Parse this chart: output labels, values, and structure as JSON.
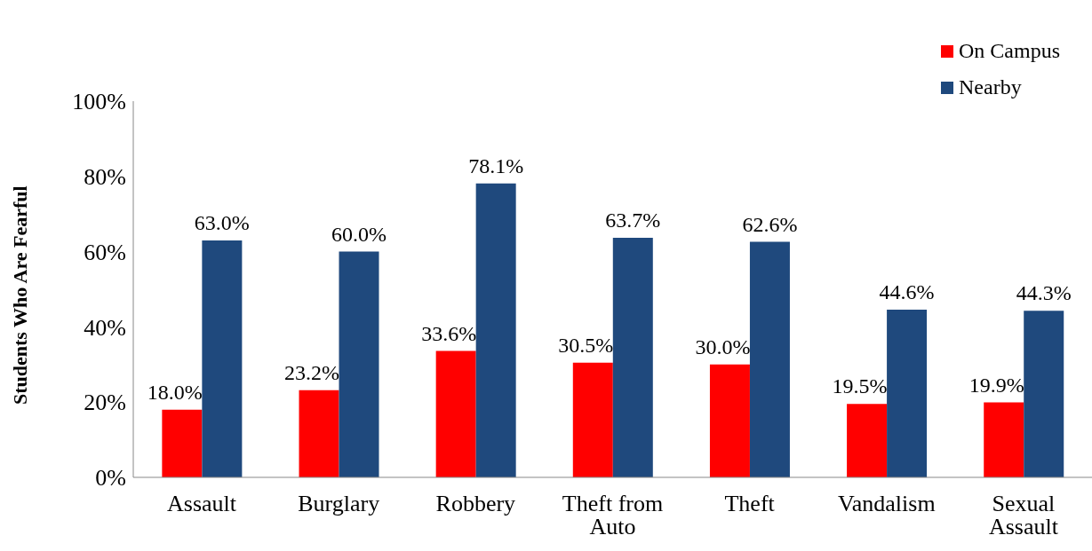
{
  "chart_data": {
    "type": "bar",
    "ylabel": "Students Who Are Fearful",
    "categories": [
      "Assault",
      "Burglary",
      "Robbery",
      "Theft from Auto",
      "Theft",
      "Vandalism",
      "Sexual Assault"
    ],
    "series": [
      {
        "name": "On Campus",
        "color": "#ff0000",
        "values": [
          18.0,
          23.2,
          33.6,
          30.5,
          30.0,
          19.5,
          19.9
        ],
        "value_labels": [
          "18.0%",
          "23.2%",
          "33.6%",
          "30.5%",
          "30.0%",
          "19.5%",
          "19.9%"
        ]
      },
      {
        "name": "Nearby",
        "color": "#1f497d",
        "values": [
          63.0,
          60.0,
          78.1,
          63.7,
          62.6,
          44.6,
          44.3
        ],
        "value_labels": [
          "63.0%",
          "60.0%",
          "78.1%",
          "63.7%",
          "62.6%",
          "44.6%",
          "44.3%"
        ]
      }
    ],
    "ylim": [
      0,
      100
    ],
    "yticks": [
      {
        "value": 0,
        "label": "0%"
      },
      {
        "value": 20,
        "label": "20%"
      },
      {
        "value": 40,
        "label": "40%"
      },
      {
        "value": 60,
        "label": "60%"
      },
      {
        "value": 80,
        "label": "80%"
      },
      {
        "value": 100,
        "label": "100%"
      }
    ],
    "grid": false,
    "legend": "top right"
  }
}
